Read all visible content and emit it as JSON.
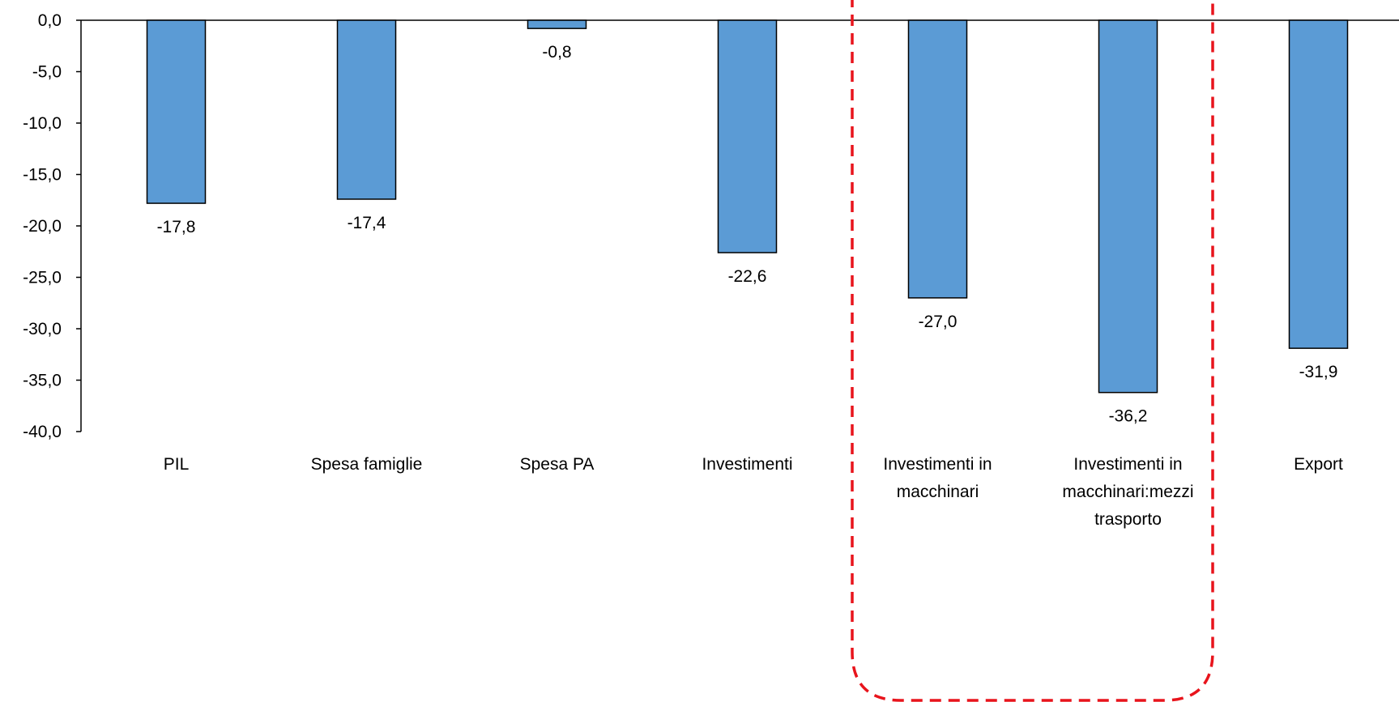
{
  "chart_data": {
    "type": "bar",
    "categories": [
      [
        "PIL"
      ],
      [
        "Spesa famiglie"
      ],
      [
        "Spesa PA"
      ],
      [
        "Investimenti"
      ],
      [
        "Investimenti in",
        "macchinari"
      ],
      [
        "Investimenti in",
        "macchinari:mezzi",
        "trasporto"
      ],
      [
        "Export"
      ]
    ],
    "values": [
      -17.8,
      -17.4,
      -0.8,
      -22.6,
      -27.0,
      -36.2,
      -31.9
    ],
    "value_labels": [
      "-17,8",
      "-17,4",
      "-0,8",
      "-22,6",
      "-27,0",
      "-36,2",
      "-31,9"
    ],
    "y_ticks": [
      0,
      -5,
      -10,
      -15,
      -20,
      -25,
      -30,
      -35,
      -40
    ],
    "y_tick_labels": [
      "0,0",
      "-5,0",
      "-10,0",
      "-15,0",
      "-20,0",
      "-25,0",
      "-30,0",
      "-35,0",
      "-40,0"
    ],
    "ylim": [
      -40,
      0
    ],
    "title": "",
    "xlabel": "",
    "ylabel": "",
    "grid": false,
    "highlighted_categories": [
      4,
      5
    ],
    "colors": {
      "bar_fill": "#5b9bd5",
      "bar_stroke": "#000000",
      "highlight_box": "#e8141c"
    }
  }
}
